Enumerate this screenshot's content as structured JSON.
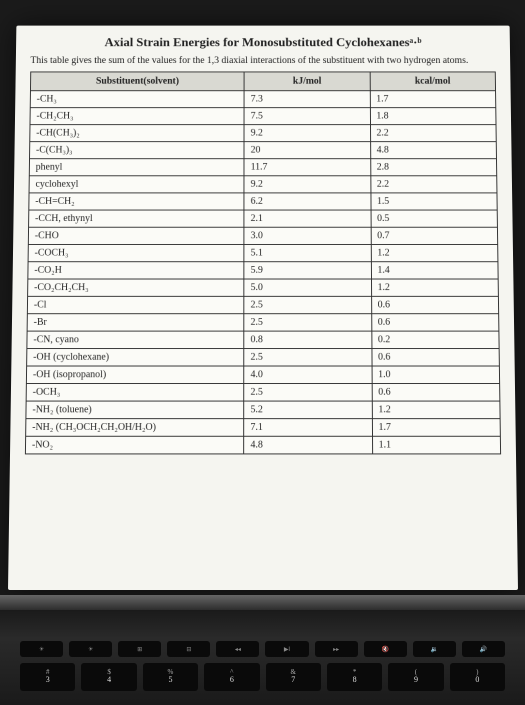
{
  "title": "Axial Strain Energies for Monosubstituted Cyclohexanesᵃ·ᵇ",
  "subtitle": "This table gives the sum of the values for the 1,3 diaxial interactions of the substituent with two hydrogen atoms.",
  "table": {
    "columns": [
      "Substituent(solvent)",
      "kJ/mol",
      "kcal/mol"
    ],
    "header_bg": "#d9d9d2",
    "cell_bg": "#fbfbf7",
    "border_color": "#333333",
    "font_size": 10,
    "rows": [
      [
        "-CH₃",
        "7.3",
        "1.7"
      ],
      [
        "-CH₂CH₃",
        "7.5",
        "1.8"
      ],
      [
        "-CH(CH₃)₂",
        "9.2",
        "2.2"
      ],
      [
        "-C(CH₃)₃",
        "20",
        "4.8"
      ],
      [
        "phenyl",
        "11.7",
        "2.8"
      ],
      [
        "cyclohexyl",
        "9.2",
        "2.2"
      ],
      [
        "-CH=CH₂",
        "6.2",
        "1.5"
      ],
      [
        "-CCH, ethynyl",
        "2.1",
        "0.5"
      ],
      [
        "-CHO",
        "3.0",
        "0.7"
      ],
      [
        "-COCH₃",
        "5.1",
        "1.2"
      ],
      [
        "-CO₂H",
        "5.9",
        "1.4"
      ],
      [
        "-CO₂CH₂CH₃",
        "5.0",
        "1.2"
      ],
      [
        "-Cl",
        "2.5",
        "0.6"
      ],
      [
        "-Br",
        "2.5",
        "0.6"
      ],
      [
        "-CN, cyano",
        "0.8",
        "0.2"
      ],
      [
        "-OH (cyclohexane)",
        "2.5",
        "0.6"
      ],
      [
        "-OH (isopropanol)",
        "4.0",
        "1.0"
      ],
      [
        "-OCH₃",
        "2.5",
        "0.6"
      ],
      [
        "-NH₂ (toluene)",
        "5.2",
        "1.2"
      ],
      [
        "-NH₂ (CH₃OCH₂CH₂OH/H₂O)",
        "7.1",
        "1.7"
      ],
      [
        "-NO₂",
        "4.8",
        "1.1"
      ]
    ]
  },
  "keyboard": {
    "fn_keys": [
      "☀",
      "☀",
      "⊞",
      "⊟",
      "◂◂",
      "▶‖",
      "▸▸",
      "🔇",
      "🔉",
      "🔊"
    ],
    "num_keys": [
      {
        "sym": "#",
        "num": "3"
      },
      {
        "sym": "$",
        "num": "4"
      },
      {
        "sym": "%",
        "num": "5"
      },
      {
        "sym": "^",
        "num": "6"
      },
      {
        "sym": "&",
        "num": "7"
      },
      {
        "sym": "*",
        "num": "8"
      },
      {
        "sym": "(",
        "num": "9"
      },
      {
        "sym": ")",
        "num": "0"
      }
    ]
  },
  "colors": {
    "page_bg": "#f5f5f0",
    "body_bg": "#1a1a1a",
    "text": "#222222"
  }
}
